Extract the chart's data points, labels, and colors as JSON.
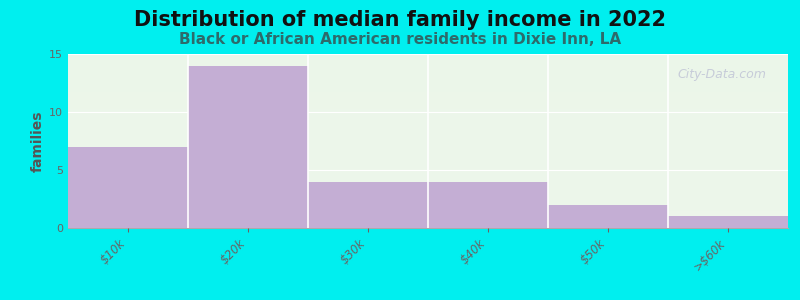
{
  "title": "Distribution of median family income in 2022",
  "subtitle": "Black or African American residents in Dixie Inn, LA",
  "categories": [
    "$10k",
    "$20k",
    "$30k",
    "$40k",
    "$50k",
    ">$60k"
  ],
  "values": [
    7,
    14,
    4,
    4,
    2,
    1
  ],
  "bar_color": "#c4aed4",
  "background_color": "#00efef",
  "plot_bg_gradient_top": "#eaf5e8",
  "plot_bg_gradient_bottom": "#f5faf3",
  "ylabel": "families",
  "ylim": [
    0,
    15
  ],
  "yticks": [
    0,
    5,
    10,
    15
  ],
  "title_fontsize": 15,
  "title_color": "#111111",
  "subtitle_fontsize": 11,
  "subtitle_color": "#2d6b6b",
  "tick_label_color": "#666666",
  "watermark": "City-Data.com",
  "grid_color": "#e0ead8"
}
